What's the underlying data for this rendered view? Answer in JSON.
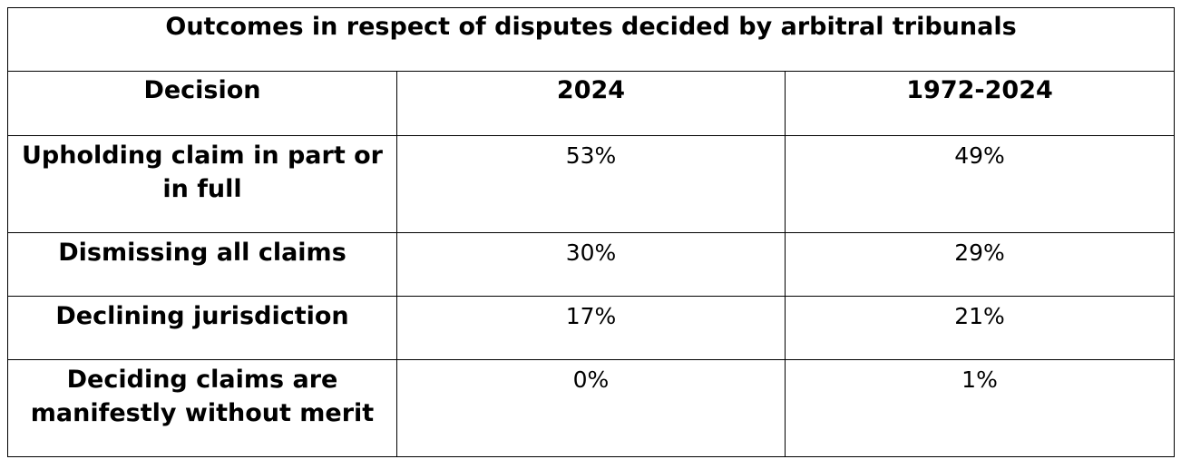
{
  "table": {
    "title": "Outcomes in respect of disputes decided by arbitral tribunals",
    "headers": [
      "Decision",
      "2024",
      "1972-2024"
    ],
    "rows": [
      {
        "decision": "Upholding claim in part or in full",
        "y2024": "53%",
        "y1972_2024": "49%"
      },
      {
        "decision": "Dismissing all claims",
        "y2024": "30%",
        "y1972_2024": "29%"
      },
      {
        "decision": "Declining jurisdiction",
        "y2024": "17%",
        "y1972_2024": "21%"
      },
      {
        "decision": "Deciding claims are manifestly without merit",
        "y2024": "0%",
        "y1972_2024": "1%"
      }
    ]
  }
}
